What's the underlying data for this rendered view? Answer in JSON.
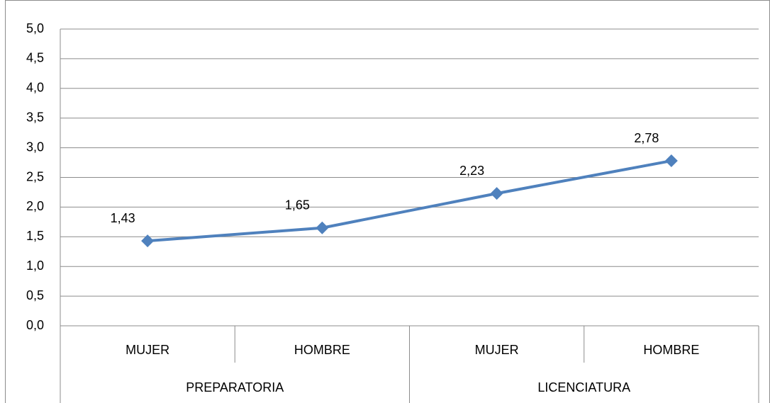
{
  "chart_data": {
    "type": "line",
    "categories": [
      "MUJER",
      "HOMBRE",
      "MUJER",
      "HOMBRE"
    ],
    "category_groups": [
      "PREPARATORIA",
      "LICENCIATURA"
    ],
    "values": [
      1.43,
      1.65,
      2.23,
      2.78
    ],
    "value_labels": [
      "1,43",
      "1,65",
      "2,23",
      "2,78"
    ],
    "color": "#4f81bd",
    "ylim": [
      0,
      5
    ],
    "yticks": [
      {
        "value": 0,
        "label": "0,0"
      },
      {
        "value": 0.5,
        "label": "0,5"
      },
      {
        "value": 1,
        "label": "1,0"
      },
      {
        "value": 1.5,
        "label": "1,5"
      },
      {
        "value": 2,
        "label": "2,0"
      },
      {
        "value": 2.5,
        "label": "2,5"
      },
      {
        "value": 3,
        "label": "3,0"
      },
      {
        "value": 3.5,
        "label": "3,5"
      },
      {
        "value": 4,
        "label": "4,0"
      },
      {
        "value": 4.5,
        "label": "4,5"
      },
      {
        "value": 5,
        "label": "5,0"
      }
    ],
    "grid": true
  }
}
